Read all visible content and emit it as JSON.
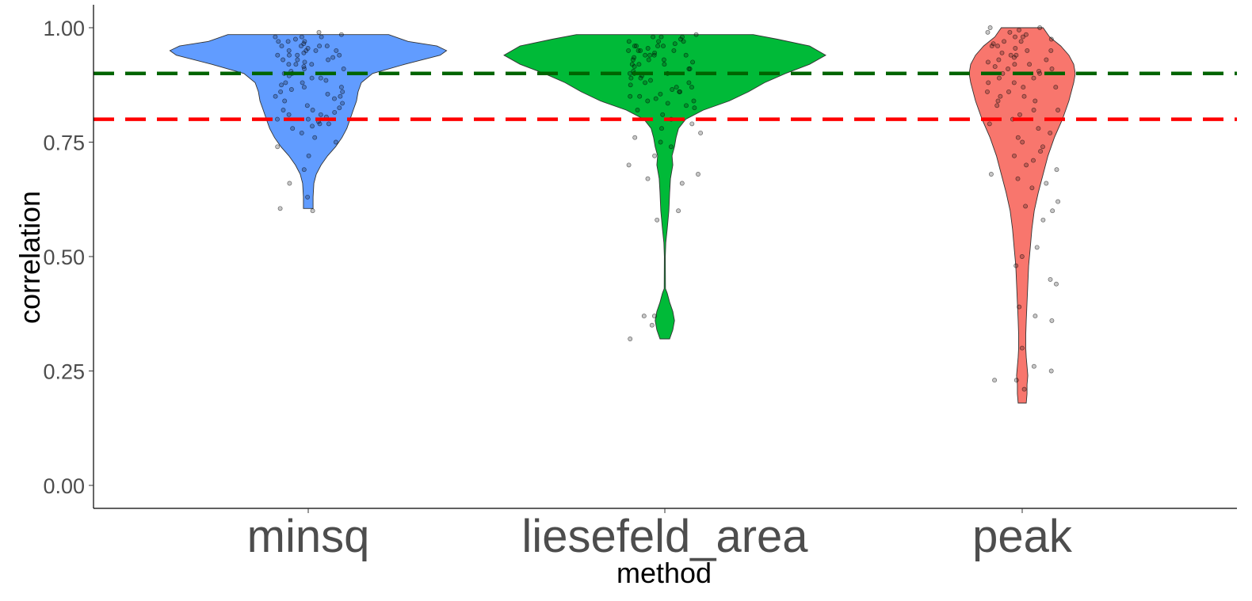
{
  "chart_data": {
    "type": "violin",
    "title": "",
    "xlabel": "method",
    "ylabel": "correlation",
    "ylim": [
      -0.05,
      1.05
    ],
    "yticks": [
      0.0,
      0.25,
      0.5,
      0.75,
      1.0
    ],
    "ytick_labels": [
      "0.00",
      "0.25",
      "0.50",
      "0.75",
      "1.00"
    ],
    "grid": false,
    "legend": "none",
    "categories": [
      "minsq",
      "liesefeld_area",
      "peak"
    ],
    "series": [
      {
        "category": "minsq",
        "color": "#619CFF",
        "range": [
          0.6,
          0.99
        ],
        "density_profile": [
          [
            0.605,
            0.03
          ],
          [
            0.63,
            0.03
          ],
          [
            0.66,
            0.035
          ],
          [
            0.68,
            0.05
          ],
          [
            0.7,
            0.08
          ],
          [
            0.72,
            0.12
          ],
          [
            0.74,
            0.17
          ],
          [
            0.76,
            0.21
          ],
          [
            0.78,
            0.24
          ],
          [
            0.8,
            0.26
          ],
          [
            0.82,
            0.28
          ],
          [
            0.84,
            0.3
          ],
          [
            0.86,
            0.31
          ],
          [
            0.88,
            0.33
          ],
          [
            0.9,
            0.4
          ],
          [
            0.92,
            0.6
          ],
          [
            0.94,
            0.82
          ],
          [
            0.95,
            0.86
          ],
          [
            0.96,
            0.8
          ],
          [
            0.97,
            0.62
          ],
          [
            0.985,
            0.5
          ]
        ],
        "points": [
          0.63,
          0.6,
          0.605,
          0.66,
          0.69,
          0.72,
          0.74,
          0.75,
          0.76,
          0.77,
          0.78,
          0.79,
          0.79,
          0.8,
          0.8,
          0.81,
          0.81,
          0.82,
          0.82,
          0.83,
          0.84,
          0.85,
          0.85,
          0.86,
          0.86,
          0.87,
          0.87,
          0.88,
          0.88,
          0.89,
          0.89,
          0.9,
          0.9,
          0.91,
          0.91,
          0.92,
          0.92,
          0.92,
          0.93,
          0.93,
          0.93,
          0.94,
          0.94,
          0.94,
          0.94,
          0.95,
          0.95,
          0.95,
          0.95,
          0.96,
          0.96,
          0.96,
          0.96,
          0.97,
          0.97,
          0.97,
          0.98,
          0.98,
          0.98,
          0.99,
          0.985,
          0.975,
          0.965,
          0.955,
          0.945,
          0.935,
          0.925,
          0.915,
          0.905,
          0.895,
          0.885,
          0.875,
          0.865,
          0.855,
          0.845,
          0.835,
          0.825,
          0.815,
          0.805,
          0.795,
          0.785
        ]
      },
      {
        "category": "liesefeld_area",
        "color": "#00BA38",
        "range": [
          0.32,
          0.99
        ],
        "density_profile": [
          [
            0.32,
            0.03
          ],
          [
            0.34,
            0.05
          ],
          [
            0.36,
            0.06
          ],
          [
            0.38,
            0.05
          ],
          [
            0.4,
            0.03
          ],
          [
            0.42,
            0.015
          ],
          [
            0.43,
            0.004
          ],
          [
            0.5,
            0.003
          ],
          [
            0.53,
            0.006
          ],
          [
            0.56,
            0.015
          ],
          [
            0.6,
            0.025
          ],
          [
            0.64,
            0.03
          ],
          [
            0.67,
            0.035
          ],
          [
            0.7,
            0.05
          ],
          [
            0.72,
            0.045
          ],
          [
            0.74,
            0.06
          ],
          [
            0.76,
            0.07
          ],
          [
            0.78,
            0.085
          ],
          [
            0.8,
            0.13
          ],
          [
            0.82,
            0.24
          ],
          [
            0.84,
            0.4
          ],
          [
            0.86,
            0.52
          ],
          [
            0.88,
            0.62
          ],
          [
            0.9,
            0.75
          ],
          [
            0.92,
            0.9
          ],
          [
            0.94,
            1.0
          ],
          [
            0.96,
            0.9
          ],
          [
            0.975,
            0.7
          ],
          [
            0.985,
            0.55
          ]
        ],
        "points": [
          0.32,
          0.35,
          0.37,
          0.37,
          0.58,
          0.6,
          0.66,
          0.67,
          0.68,
          0.7,
          0.72,
          0.74,
          0.75,
          0.76,
          0.77,
          0.78,
          0.79,
          0.8,
          0.81,
          0.82,
          0.83,
          0.84,
          0.84,
          0.85,
          0.85,
          0.86,
          0.86,
          0.87,
          0.87,
          0.88,
          0.88,
          0.89,
          0.89,
          0.9,
          0.9,
          0.9,
          0.91,
          0.91,
          0.92,
          0.92,
          0.92,
          0.93,
          0.93,
          0.93,
          0.94,
          0.94,
          0.94,
          0.94,
          0.95,
          0.95,
          0.95,
          0.95,
          0.96,
          0.96,
          0.96,
          0.96,
          0.97,
          0.97,
          0.97,
          0.98,
          0.98,
          0.98,
          0.985,
          0.975,
          0.965,
          0.955,
          0.945,
          0.935,
          0.925,
          0.915,
          0.905,
          0.895,
          0.885,
          0.875,
          0.865,
          0.855,
          0.845,
          0.835,
          0.825
        ]
      },
      {
        "category": "peak",
        "color": "#F8766D",
        "range": [
          0.18,
          1.0
        ],
        "density_profile": [
          [
            0.18,
            0.025
          ],
          [
            0.2,
            0.03
          ],
          [
            0.22,
            0.03
          ],
          [
            0.24,
            0.035
          ],
          [
            0.26,
            0.03
          ],
          [
            0.28,
            0.025
          ],
          [
            0.3,
            0.022
          ],
          [
            0.33,
            0.022
          ],
          [
            0.36,
            0.025
          ],
          [
            0.4,
            0.03
          ],
          [
            0.44,
            0.035
          ],
          [
            0.48,
            0.04
          ],
          [
            0.52,
            0.05
          ],
          [
            0.56,
            0.06
          ],
          [
            0.6,
            0.075
          ],
          [
            0.64,
            0.1
          ],
          [
            0.68,
            0.13
          ],
          [
            0.72,
            0.16
          ],
          [
            0.76,
            0.2
          ],
          [
            0.8,
            0.25
          ],
          [
            0.84,
            0.29
          ],
          [
            0.88,
            0.32
          ],
          [
            0.9,
            0.33
          ],
          [
            0.92,
            0.32
          ],
          [
            0.94,
            0.29
          ],
          [
            0.96,
            0.24
          ],
          [
            0.98,
            0.17
          ],
          [
            1.0,
            0.13
          ]
        ],
        "points": [
          0.21,
          0.23,
          0.23,
          0.25,
          0.26,
          0.3,
          0.36,
          0.37,
          0.39,
          0.44,
          0.45,
          0.48,
          0.5,
          0.52,
          0.58,
          0.6,
          0.61,
          0.62,
          0.65,
          0.66,
          0.67,
          0.68,
          0.69,
          0.7,
          0.71,
          0.72,
          0.73,
          0.74,
          0.75,
          0.76,
          0.77,
          0.78,
          0.79,
          0.8,
          0.81,
          0.82,
          0.82,
          0.83,
          0.84,
          0.84,
          0.85,
          0.85,
          0.86,
          0.86,
          0.87,
          0.87,
          0.88,
          0.88,
          0.89,
          0.89,
          0.9,
          0.9,
          0.91,
          0.91,
          0.92,
          0.92,
          0.93,
          0.93,
          0.94,
          0.94,
          0.95,
          0.95,
          0.96,
          0.96,
          0.97,
          0.97,
          0.98,
          0.98,
          0.99,
          0.99,
          1.0,
          1.0,
          0.995,
          0.985,
          0.975,
          0.965,
          0.955,
          0.945,
          0.935,
          0.925,
          0.915,
          0.905
        ]
      }
    ],
    "reference_lines": [
      {
        "y": 0.9,
        "color": "#006400",
        "style": "dashed"
      },
      {
        "y": 0.8,
        "color": "#FF0000",
        "style": "dashed"
      }
    ]
  }
}
